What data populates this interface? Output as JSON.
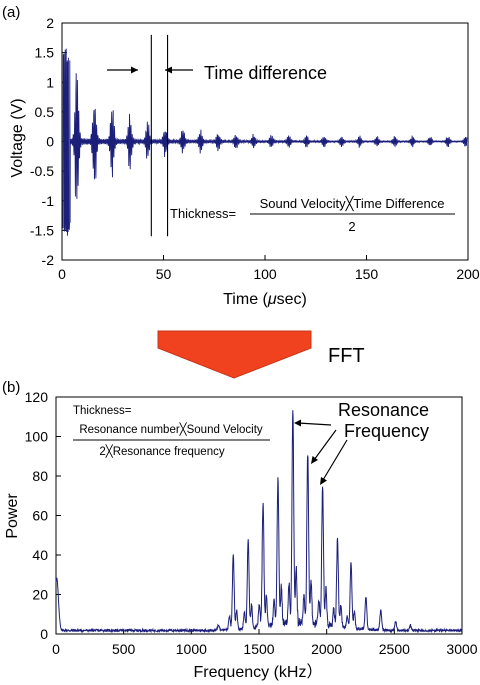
{
  "chart_data": [
    {
      "panel_label": "(a)",
      "type": "line",
      "xlabel_prefix": "Time (",
      "xlabel_mu": "μ",
      "xlabel_suffix": "sec)",
      "ylabel": "Voltage (V)",
      "xlim": [
        0,
        200
      ],
      "ylim": [
        -2,
        2
      ],
      "xticks": [
        "0",
        "50",
        "100",
        "150",
        "200"
      ],
      "yticks": [
        "-2",
        "-1.5",
        "-1",
        "-0.5",
        "0",
        "0.5",
        "1",
        "1.5",
        "2"
      ],
      "grid": false,
      "signal": {
        "description_values": "decaying ultrasonic echo train",
        "initial_amplitude_v": 1.6,
        "echo_period_us": 8.7,
        "final_amplitude_v": 0.08
      },
      "time_marker_times_us": [
        44,
        52
      ],
      "annotation": "Time difference",
      "formula": {
        "lhs": "Thickness=",
        "numerator": "Sound Velocity╳Time Difference",
        "denominator": "2"
      }
    },
    {
      "panel_label": "(b)",
      "type": "line",
      "xlabel": "Frequency (kHz）",
      "ylabel": "Power",
      "xlim": [
        0,
        3000
      ],
      "ylim": [
        0,
        120
      ],
      "xticks": [
        "0",
        "500",
        "1000",
        "1500",
        "2000",
        "2500",
        "3000"
      ],
      "yticks": [
        "0",
        "20",
        "40",
        "60",
        "80",
        "100",
        "120"
      ],
      "grid": false,
      "peaks": [
        {
          "x": 5,
          "y": 28
        },
        {
          "x": 1200,
          "y": 4
        },
        {
          "x": 1310,
          "y": 39
        },
        {
          "x": 1420,
          "y": 46
        },
        {
          "x": 1530,
          "y": 64
        },
        {
          "x": 1640,
          "y": 75
        },
        {
          "x": 1750,
          "y": 110
        },
        {
          "x": 1860,
          "y": 87
        },
        {
          "x": 1970,
          "y": 73
        },
        {
          "x": 2080,
          "y": 46
        },
        {
          "x": 2180,
          "y": 35
        },
        {
          "x": 2290,
          "y": 18
        },
        {
          "x": 2400,
          "y": 12
        },
        {
          "x": 2510,
          "y": 6
        },
        {
          "x": 2620,
          "y": 4
        }
      ],
      "annotation_line1": "Resonance",
      "annotation_line2": "Frequency",
      "formula": {
        "lhs": "Thickness=",
        "numerator": "Resonance number╳Sound Velocity",
        "denominator": "2╳Resonance frequency"
      }
    }
  ],
  "arrow": {
    "label": "FFT",
    "color": "#f0421e"
  },
  "colors": {
    "signal": "#1b1f7a",
    "axis": "#000000"
  }
}
